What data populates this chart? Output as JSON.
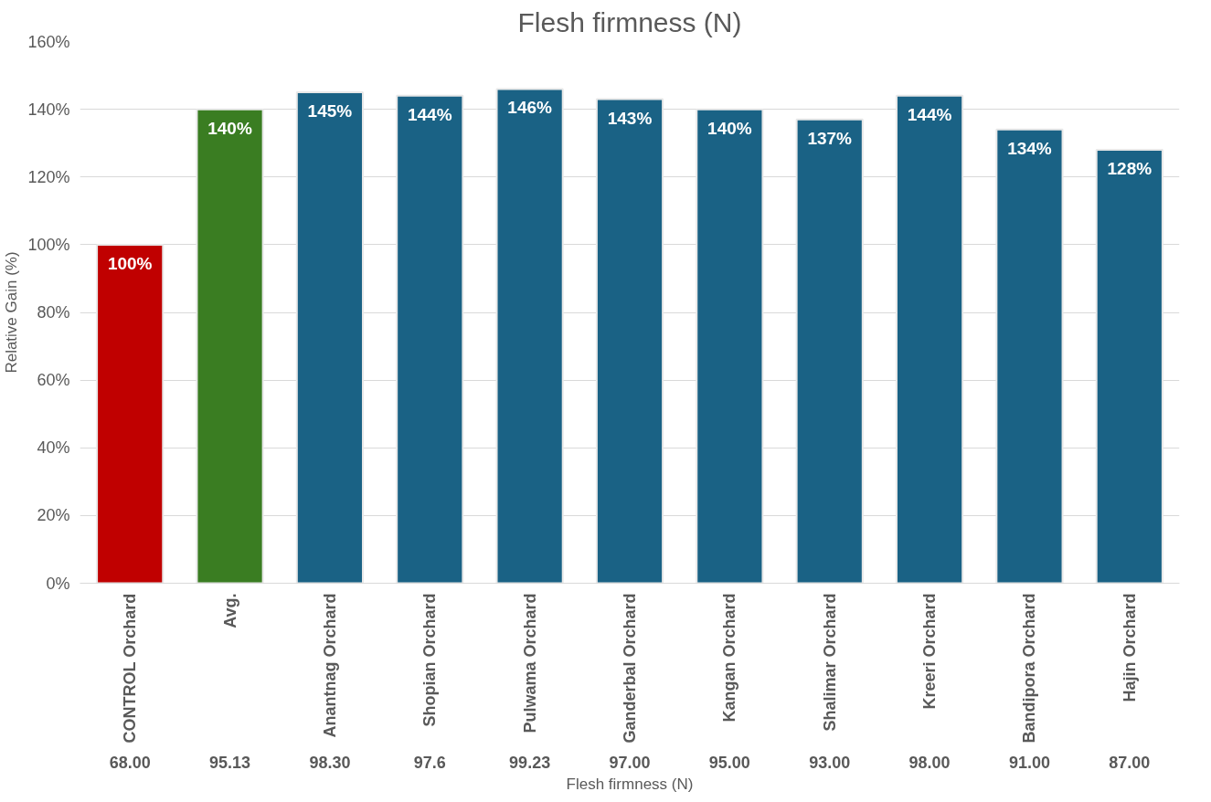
{
  "chart_data": {
    "type": "bar",
    "title": "Flesh firmness (N)",
    "xlabel": "Flesh firmness (N)",
    "ylabel": "Relative Gain (%)",
    "categories": [
      "CONTROL Orchard",
      "Avg.",
      "Anantnag Orchard",
      "Shopian Orchard",
      "Pulwama Orchard",
      "Ganderbal Orchard",
      "Kangan Orchard",
      "Shalimar Orchard",
      "Kreeri Orchard",
      "Bandipora Orchard",
      "Hajin Orchard"
    ],
    "values": [
      100,
      140,
      145,
      144,
      146,
      143,
      140,
      137,
      144,
      134,
      128
    ],
    "value_labels": [
      "100%",
      "140%",
      "145%",
      "144%",
      "146%",
      "143%",
      "140%",
      "137%",
      "144%",
      "134%",
      "128%"
    ],
    "colors": [
      "#c00000",
      "#3a7d22",
      "#1a6285",
      "#1a6285",
      "#1a6285",
      "#1a6285",
      "#1a6285",
      "#1a6285",
      "#1a6285",
      "#1a6285",
      "#1a6285"
    ],
    "ylim": [
      0,
      160
    ],
    "yticks": [
      {
        "value": 0,
        "label": "0%"
      },
      {
        "value": 20,
        "label": "20%"
      },
      {
        "value": 40,
        "label": "40%"
      },
      {
        "value": 60,
        "label": "60%"
      },
      {
        "value": 80,
        "label": "80%"
      },
      {
        "value": 100,
        "label": "100%"
      },
      {
        "value": 120,
        "label": "120%"
      },
      {
        "value": 140,
        "label": "140%"
      },
      {
        "value": 160,
        "label": "160%"
      }
    ],
    "annotations": [
      "68.00",
      "95.13",
      "98.30",
      "97.6",
      "99.23",
      "97.00",
      "95.00",
      "93.00",
      "98.00",
      "91.00",
      "87.00"
    ],
    "grid": "y"
  }
}
